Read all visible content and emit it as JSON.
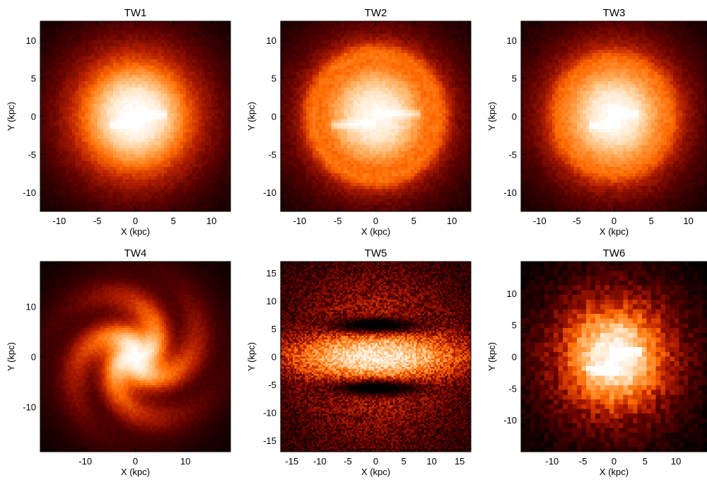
{
  "chart_data": [
    {
      "type": "heatmap",
      "title": "TW1",
      "xlabel": "X (kpc)",
      "ylabel": "Y (kpc)",
      "xlim": [
        -12.5,
        12.5
      ],
      "ylim": [
        -12.5,
        12.5
      ],
      "xticks": [
        -10,
        -5,
        0,
        5,
        10
      ],
      "yticks": [
        -10,
        -5,
        0,
        5,
        10
      ],
      "colormap": [
        "#000000",
        "#5a0000",
        "#b41e00",
        "#ff6a00",
        "#ffb060",
        "#ffe6c8",
        "#ffffff"
      ],
      "structure": "smooth disk with small central bar"
    },
    {
      "type": "heatmap",
      "title": "TW2",
      "xlabel": "X (kpc)",
      "ylabel": "Y (kpc)",
      "xlim": [
        -12.5,
        12.5
      ],
      "ylim": [
        -12.5,
        12.5
      ],
      "xticks": [
        -10,
        -5,
        0,
        5,
        10
      ],
      "yticks": [
        -10,
        -5,
        0,
        5,
        10
      ],
      "colormap": [
        "#000000",
        "#5a0000",
        "#b41e00",
        "#ff6a00",
        "#ffb060",
        "#ffe6c8",
        "#ffffff"
      ],
      "structure": "disk with ring and long bar"
    },
    {
      "type": "heatmap",
      "title": "TW3",
      "xlabel": "X (kpc)",
      "ylabel": "Y (kpc)",
      "xlim": [
        -12.5,
        12.5
      ],
      "ylim": [
        -12.5,
        12.5
      ],
      "xticks": [
        -10,
        -5,
        0,
        5,
        10
      ],
      "yticks": [
        -10,
        -5,
        0,
        5,
        10
      ],
      "colormap": [
        "#000000",
        "#5a0000",
        "#b41e00",
        "#ff6a00",
        "#ffb060",
        "#ffe6c8",
        "#ffffff"
      ],
      "structure": "disk with faint ring and short bar"
    },
    {
      "type": "heatmap",
      "title": "TW4",
      "xlabel": "X (kpc)",
      "ylabel": "Y (kpc)",
      "xlim": [
        -19,
        19
      ],
      "ylim": [
        -19,
        19
      ],
      "xticks": [
        -10,
        0,
        10
      ],
      "yticks": [
        -10,
        0,
        10
      ],
      "colormap": [
        "#000000",
        "#5a0000",
        "#b41e00",
        "#ff6a00",
        "#ffb060",
        "#ffe6c8",
        "#ffffff"
      ],
      "structure": "multi-armed spiral disk"
    },
    {
      "type": "heatmap",
      "title": "TW5",
      "xlabel": "X (kpc)",
      "ylabel": "Y (kpc)",
      "xlim": [
        -17,
        17
      ],
      "ylim": [
        -17,
        17
      ],
      "xticks": [
        -15,
        -10,
        -5,
        0,
        5,
        10,
        15
      ],
      "yticks": [
        -15,
        -10,
        -5,
        0,
        5,
        10,
        15
      ],
      "colormap": [
        "#000000",
        "#5a0000",
        "#b41e00",
        "#ff6a00",
        "#ffb060",
        "#ffe6c8",
        "#ffffff"
      ],
      "structure": "noisy disk with strong horizontal bar and dark gaps above and below"
    },
    {
      "type": "heatmap",
      "title": "TW6",
      "xlabel": "X (kpc)",
      "ylabel": "Y (kpc)",
      "xlim": [
        -15,
        15
      ],
      "ylim": [
        -15,
        15
      ],
      "xticks": [
        -10,
        -5,
        0,
        5,
        10
      ],
      "yticks": [
        -10,
        -5,
        0,
        5,
        10
      ],
      "colormap": [
        "#000000",
        "#5a0000",
        "#b41e00",
        "#ff6a00",
        "#ffb060",
        "#ffe6c8",
        "#ffffff"
      ],
      "structure": "coarse pixelated disk with short bar"
    }
  ]
}
